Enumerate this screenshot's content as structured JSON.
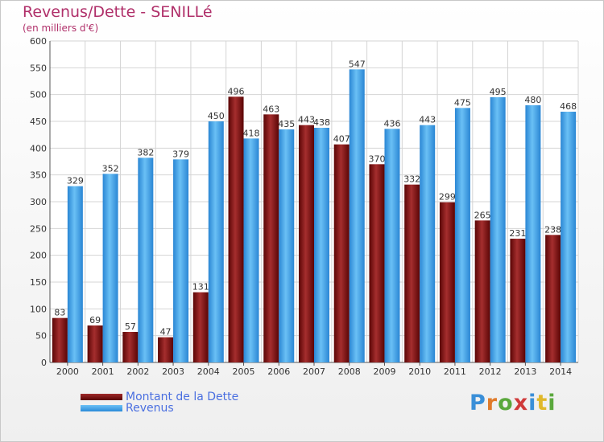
{
  "chart_data": {
    "type": "bar",
    "title": "Revenus/Dette - SENILLé",
    "subtitle": "(en milliers d'€)",
    "categories": [
      "2000",
      "2001",
      "2002",
      "2003",
      "2004",
      "2005",
      "2006",
      "2007",
      "2008",
      "2009",
      "2010",
      "2011",
      "2012",
      "2013",
      "2014"
    ],
    "series": [
      {
        "name": "Montant de la Dette",
        "color": "#7a1010",
        "values": [
          83,
          69,
          57,
          47,
          131,
          496,
          463,
          443,
          407,
          370,
          332,
          299,
          265,
          231,
          238
        ]
      },
      {
        "name": "Revenus",
        "color": "#3a9ce8",
        "values": [
          329,
          352,
          382,
          379,
          450,
          418,
          435,
          438,
          547,
          436,
          443,
          475,
          495,
          480,
          468
        ]
      }
    ],
    "ylim": [
      0,
      600
    ],
    "yticks": [
      0,
      50,
      100,
      150,
      200,
      250,
      300,
      350,
      400,
      450,
      500,
      550,
      600
    ],
    "grid": true,
    "legend_position": "bottom-left"
  },
  "logo_text": "Proxiti",
  "colors": {
    "title": "#b0306a",
    "legend_text": "#4a6fe0",
    "grid": "#d4d4d4"
  }
}
